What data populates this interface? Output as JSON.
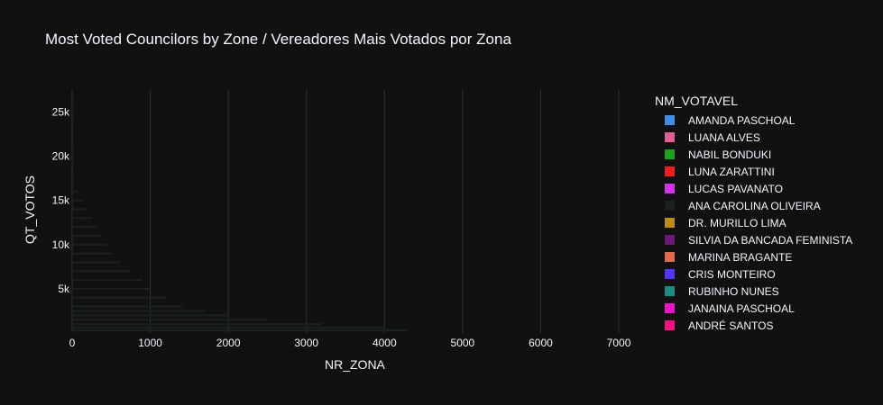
{
  "chart_data": {
    "type": "bar",
    "orientation": "horizontal",
    "barmode": "stack",
    "title": "Most Voted Councilors by Zone / Vereadores Mais Votados por Zona",
    "xlabel": "NR_ZONA",
    "ylabel": "QT_VOTOS",
    "xlim": [
      0,
      7300
    ],
    "ylim": [
      0,
      27500
    ],
    "xticks": [
      0,
      1000,
      2000,
      3000,
      4000,
      5000,
      6000,
      7000
    ],
    "xtick_labels": [
      "0",
      "1000",
      "2000",
      "3000",
      "4000",
      "5000",
      "6000",
      "7000"
    ],
    "yticks": [
      5000,
      10000,
      15000,
      20000,
      25000
    ],
    "ytick_labels": [
      "5k",
      "10k",
      "15k",
      "20k",
      "25k"
    ],
    "grid": true,
    "legend_position": "right",
    "legend_title": "NM_VOTAVEL",
    "colors": {
      "background": "#111111",
      "grid": "#283442",
      "bar_fill": "#1b2120",
      "text": "#f2f5fa"
    },
    "series": [
      {
        "name": "AMANDA PASCHOAL",
        "color": "#3b8fe6"
      },
      {
        "name": "LUANA ALVES",
        "color": "#e45d90"
      },
      {
        "name": "NABIL BONDUKI",
        "color": "#1ca31c"
      },
      {
        "name": "LUNA ZARATTINI",
        "color": "#f51b1b"
      },
      {
        "name": "LUCAS PAVANATO",
        "color": "#d62ef2"
      },
      {
        "name": "ANA CAROLINA OLIVEIRA",
        "color": "#1b2120"
      },
      {
        "name": "DR. MURILLO LIMA",
        "color": "#c08a10"
      },
      {
        "name": "SILVIA DA BANCADA FEMINISTA",
        "color": "#6c1a78"
      },
      {
        "name": "MARINA BRAGANTE",
        "color": "#e2694c"
      },
      {
        "name": "CRIS MONTEIRO",
        "color": "#5433fb"
      },
      {
        "name": "RUBINHO NUNES",
        "color": "#168e85"
      },
      {
        "name": "JANAINA PASCHOAL",
        "color": "#f00fcf"
      },
      {
        "name": "ANDRÉ SANTOS",
        "color": "#fb0d80"
      }
    ],
    "bars": [
      {
        "y": 27000,
        "x": 3
      },
      {
        "y": 26000,
        "x": 5
      },
      {
        "y": 25000,
        "x": 6
      },
      {
        "y": 24000,
        "x": 8
      },
      {
        "y": 23000,
        "x": 10
      },
      {
        "y": 22000,
        "x": 12
      },
      {
        "y": 21000,
        "x": 14
      },
      {
        "y": 20000,
        "x": 16
      },
      {
        "y": 19000,
        "x": 18
      },
      {
        "y": 18000,
        "x": 25
      },
      {
        "y": 17000,
        "x": 40
      },
      {
        "y": 16000,
        "x": 80
      },
      {
        "y": 15000,
        "x": 140
      },
      {
        "y": 14000,
        "x": 200
      },
      {
        "y": 13000,
        "x": 260
      },
      {
        "y": 12000,
        "x": 320
      },
      {
        "y": 11000,
        "x": 380
      },
      {
        "y": 10000,
        "x": 450
      },
      {
        "y": 9000,
        "x": 520
      },
      {
        "y": 8000,
        "x": 620
      },
      {
        "y": 7000,
        "x": 750
      },
      {
        "y": 6000,
        "x": 900
      },
      {
        "y": 5000,
        "x": 1000
      },
      {
        "y": 4000,
        "x": 1200
      },
      {
        "y": 3000,
        "x": 1400
      },
      {
        "y": 2500,
        "x": 1700
      },
      {
        "y": 2000,
        "x": 2000
      },
      {
        "y": 1500,
        "x": 2500
      },
      {
        "y": 1000,
        "x": 3200
      },
      {
        "y": 600,
        "x": 4000
      },
      {
        "y": 300,
        "x": 4300
      }
    ]
  }
}
